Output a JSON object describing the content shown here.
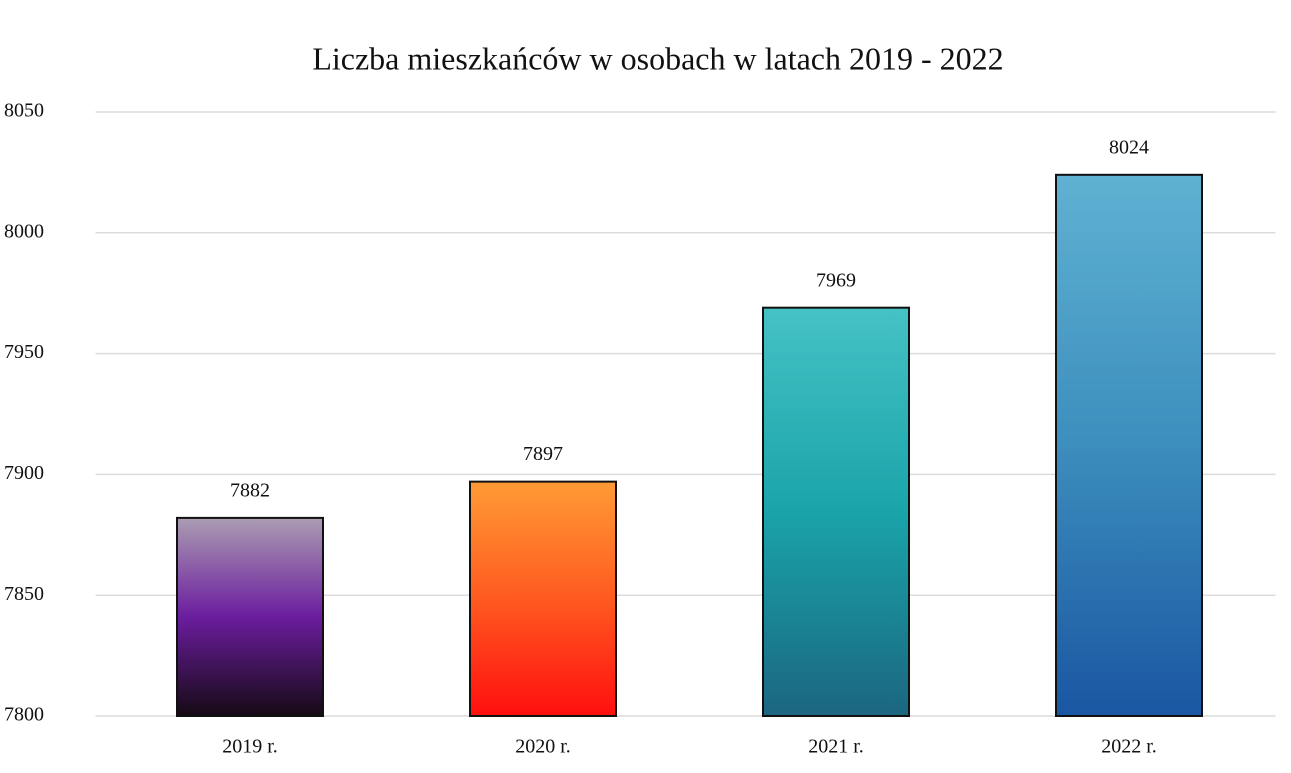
{
  "chart_data": {
    "type": "bar",
    "title": "Liczba mieszkańców w osobach w latach 2019 - 2022",
    "categories": [
      "2019 r.",
      "2020 r.",
      "2021 r.",
      "2022 r."
    ],
    "values": [
      7882,
      7897,
      7969,
      8024
    ],
    "colors": [
      [
        "#ab9cb2",
        "#6b1d9e",
        "#150a14"
      ],
      [
        "#ff9b35",
        "#ff5a20",
        "#ff0f0f"
      ],
      [
        "#45c2c4",
        "#1aa4aa",
        "#1b6680"
      ],
      [
        "#5fb2d2",
        "#3c8ebd",
        "#1a56a2"
      ]
    ],
    "ylim": [
      7800,
      8050
    ],
    "yticks": [
      7800,
      7850,
      7900,
      7950,
      8000,
      8050
    ],
    "grid": true
  }
}
